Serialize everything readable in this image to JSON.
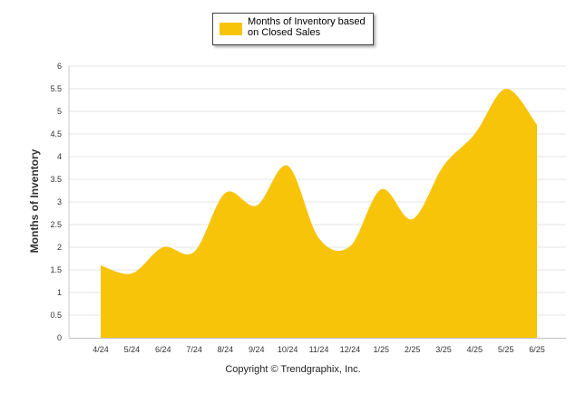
{
  "legend": {
    "label_line1": "Months of Inventory based",
    "label_line2": "on Closed Sales"
  },
  "copyright": "Copyright © Trendgraphix, Inc.",
  "chart_data": {
    "type": "area",
    "title": "",
    "ylabel": "Months of Inventory",
    "xlabel": "",
    "ylim": [
      0,
      6
    ],
    "yticks": [
      "0",
      "0.5",
      "1",
      "1.5",
      "2",
      "2.5",
      "3",
      "3.5",
      "4",
      "4.5",
      "5",
      "5.5",
      "6"
    ],
    "categories": [
      "4/24",
      "5/24",
      "6/24",
      "7/24",
      "8/24",
      "9/24",
      "10/24",
      "11/24",
      "12/24",
      "1/25",
      "2/25",
      "3/25",
      "4/25",
      "5/25",
      "6/25"
    ],
    "series": [
      {
        "name": "Months of Inventory based on Closed Sales",
        "values": [
          1.6,
          1.42,
          2.0,
          1.9,
          3.2,
          2.92,
          3.8,
          2.2,
          2.02,
          3.28,
          2.62,
          3.8,
          4.5,
          5.5,
          4.7
        ],
        "color": "#F8C40A"
      }
    ],
    "grid": true,
    "legend_position": "top-center"
  }
}
